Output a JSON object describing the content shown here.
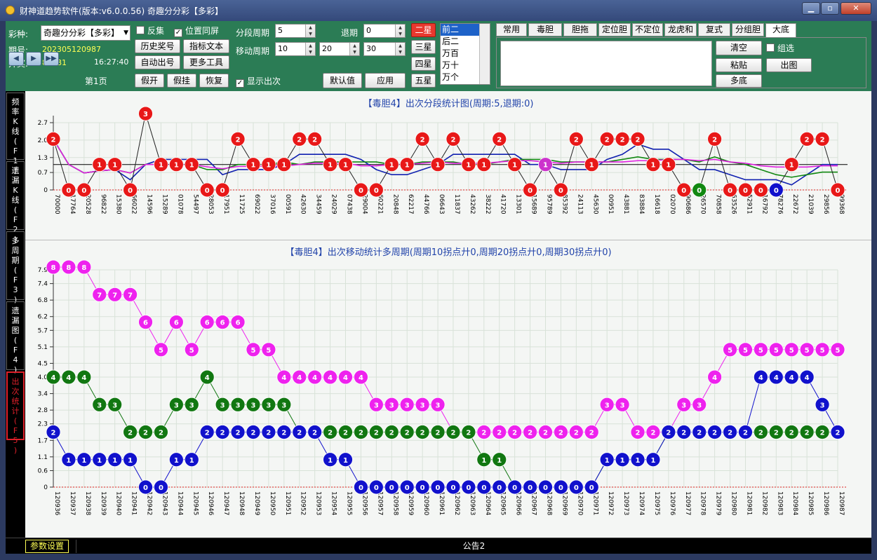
{
  "window": {
    "title": "财神道趋势软件(版本:v6.0.0.56)   奇趣分分彩【多彩】"
  },
  "toolbar": {
    "caizhong_label": "彩种:",
    "caizhong_value": "奇趣分分彩【多彩】",
    "qihao_label": "期号:",
    "qihao_value": "202305120987",
    "kaijiang_label": "开奖:",
    "kaijiang_value": "88881",
    "time": "16:27:40",
    "page": "第1页",
    "fanji": "反集",
    "weizhi": "位置同屏",
    "show_count": "显示出次",
    "btn_history": "历史奖号",
    "btn_index": "指标文本",
    "btn_auto": "自动出号",
    "btn_tools": "更多工具",
    "btn_fakeopen": "假开",
    "btn_fakehang": "假挂",
    "btn_restore": "恢复",
    "period_label": "分段周期",
    "period_value": "5",
    "back_label": "退期",
    "back_value": "0",
    "move_label": "移动周期",
    "move1": "10",
    "move2": "20",
    "move3": "30",
    "btn_default": "默认值",
    "btn_apply": "应用",
    "stars": [
      "二星",
      "三星",
      "四星",
      "五星"
    ],
    "positions": [
      "前二",
      "后二",
      "万百",
      "万十",
      "万个"
    ],
    "tabs": [
      "常用",
      "毒胆",
      "胆拖",
      "定位胆",
      "不定位",
      "龙虎和",
      "复式",
      "分组胆",
      "大底"
    ],
    "btn_clear": "清空",
    "btn_paste": "粘贴",
    "btn_multi": "多底",
    "btn_chart": "出图",
    "zuxuan": "组选"
  },
  "sidebar": [
    {
      "label": "频率K线(F1)"
    },
    {
      "label": "遗漏K线(F2)"
    },
    {
      "label": "多周期(F3)"
    },
    {
      "label": "遗漏图(F4)"
    },
    {
      "label": "出次统计(F5)"
    }
  ],
  "status": {
    "settings": "参数设置",
    "notice": "公告2"
  },
  "chart_data": [
    {
      "type": "line",
      "title": "【毒胆4】出次分段统计图(周期:5,退期:0)",
      "yticks": [
        "2.7",
        "2.0",
        "1.3",
        "0.7",
        "0"
      ],
      "x": [
        "70000",
        "17764",
        "20528",
        "96822",
        "15380",
        "66022",
        "14596",
        "15289",
        "01078",
        "54497",
        "28053",
        "17951",
        "11725",
        "69022",
        "37016",
        "00591",
        "42630",
        "34459",
        "24029",
        "07438",
        "29004",
        "60221",
        "20848",
        "62217",
        "44766",
        "06643",
        "11837",
        "43262",
        "38222",
        "41720",
        "13301",
        "15689",
        "95789",
        "85392",
        "24113",
        "45630",
        "00951",
        "43881",
        "83884",
        "16618",
        "02070",
        "90686",
        "26570",
        "70858",
        "63526",
        "52911",
        "16792",
        "78276",
        "22672",
        "21039",
        "29856",
        "99368"
      ],
      "values": [
        2,
        0,
        0,
        1,
        1,
        0,
        3,
        1,
        1,
        1,
        0,
        0,
        2,
        1,
        1,
        1,
        2,
        2,
        1,
        1,
        0,
        0,
        1,
        1,
        2,
        1,
        2,
        1,
        1,
        2,
        1,
        0,
        1,
        0,
        2,
        1,
        2,
        2,
        2,
        1,
        1,
        0,
        0,
        2,
        0,
        0,
        0,
        0,
        1,
        2,
        2,
        0
      ]
    },
    {
      "type": "line",
      "title": "【毒胆4】出次移动统计多周期(周期10拐点廾0,周期20拐点廾0,周期30拐点廾0)",
      "yticks": [
        "7.9",
        "7.4",
        "6.8",
        "6.2",
        "5.7",
        "5.1",
        "4.5",
        "4.0",
        "3.4",
        "2.8",
        "2.3",
        "1.7",
        "1.1",
        "0.6",
        "0"
      ],
      "x": [
        "120936",
        "120937",
        "120938",
        "120939",
        "120940",
        "120941",
        "120942",
        "120943",
        "120944",
        "120945",
        "120946",
        "120947",
        "120948",
        "120949",
        "120950",
        "120951",
        "120952",
        "120953",
        "120954",
        "120955",
        "120956",
        "120957",
        "120958",
        "120959",
        "120960",
        "120961",
        "120962",
        "120963",
        "120964",
        "120965",
        "120966",
        "120967",
        "120968",
        "120969",
        "120970",
        "120971",
        "120972",
        "120973",
        "120974",
        "120975",
        "120976",
        "120977",
        "120978",
        "120979",
        "120980",
        "120981",
        "120982",
        "120983",
        "120984",
        "120985",
        "120986",
        "120987"
      ],
      "series": [
        {
          "values": [
            8,
            8,
            8,
            7,
            7,
            7,
            6,
            5,
            6,
            5,
            6,
            6,
            6,
            5,
            5,
            4,
            4,
            4,
            4,
            4,
            4,
            3,
            3,
            3,
            3,
            3,
            2,
            2,
            2,
            2,
            2,
            2,
            2,
            2,
            2,
            2,
            3,
            3,
            2,
            2,
            2,
            3,
            3,
            4,
            5,
            5,
            5,
            5,
            5,
            5,
            5,
            5
          ],
          "color": "#ee22ee"
        },
        {
          "values": [
            4,
            4,
            4,
            3,
            3,
            2,
            2,
            2,
            3,
            3,
            4,
            3,
            3,
            3,
            3,
            3,
            2,
            2,
            2,
            2,
            2,
            2,
            2,
            2,
            2,
            2,
            2,
            2,
            1,
            1,
            0,
            0,
            0,
            0,
            0,
            0,
            1,
            1,
            1,
            1,
            2,
            2,
            2,
            2,
            2,
            2,
            2,
            2,
            2,
            2,
            2,
            2
          ],
          "color": "#117711"
        },
        {
          "values": [
            2,
            1,
            1,
            1,
            1,
            1,
            0,
            0,
            1,
            1,
            2,
            2,
            2,
            2,
            2,
            2,
            2,
            2,
            1,
            1,
            0,
            0,
            0,
            0,
            0,
            0,
            0,
            0,
            0,
            0,
            0,
            0,
            0,
            0,
            0,
            0,
            1,
            1,
            1,
            1,
            2,
            2,
            2,
            2,
            2,
            2,
            4,
            4,
            4,
            4,
            3,
            2
          ],
          "color": "#1111cc"
        }
      ]
    }
  ]
}
